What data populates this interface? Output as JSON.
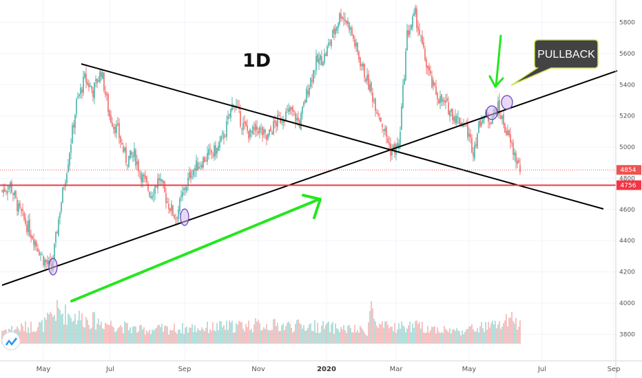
{
  "chart_data": {
    "type": "candlestick",
    "timeframe_label": "1D",
    "y_ticks": [
      "3800",
      "4000",
      "4200",
      "4400",
      "4600",
      "4800",
      "5000",
      "5200",
      "5400",
      "5600",
      "5800"
    ],
    "ylim": [
      3630,
      5930
    ],
    "x_ticks": [
      "May",
      "Jul",
      "Sep",
      "Nov",
      "2020",
      "Mar",
      "May",
      "Jul",
      "Sep"
    ],
    "price_tags": [
      {
        "label": "4854",
        "value": 4854,
        "color": "#ef5350"
      },
      {
        "label": "4756",
        "value": 4756,
        "color": "#f23645"
      }
    ],
    "support_level": 4756,
    "last_price": 4854,
    "annotation": "PULLBACK",
    "colors": {
      "up": "#26a69a",
      "down": "#ef5350",
      "support": "#f23645",
      "arrow": "#25e61e",
      "trendline": "#000000",
      "marker_fill": "#d8b8ef",
      "marker_stroke": "#5b3fb5",
      "callout_bg": "#434343"
    },
    "trendlines": [
      {
        "name": "descending-resistance"
      },
      {
        "name": "ascending-support"
      }
    ],
    "price_anchors": [
      [
        0,
        4720
      ],
      [
        6,
        4760
      ],
      [
        12,
        4600
      ],
      [
        18,
        4500
      ],
      [
        24,
        4400
      ],
      [
        30,
        4280
      ],
      [
        36,
        4220
      ],
      [
        42,
        4600
      ],
      [
        48,
        4920
      ],
      [
        54,
        5280
      ],
      [
        60,
        5440
      ],
      [
        66,
        5360
      ],
      [
        72,
        5490
      ],
      [
        78,
        5200
      ],
      [
        84,
        5100
      ],
      [
        90,
        4920
      ],
      [
        96,
        4950
      ],
      [
        102,
        4800
      ],
      [
        108,
        4700
      ],
      [
        114,
        4800
      ],
      [
        120,
        4650
      ],
      [
        126,
        4550
      ],
      [
        132,
        4720
      ],
      [
        138,
        4850
      ],
      [
        144,
        4900
      ],
      [
        150,
        4950
      ],
      [
        156,
        4980
      ],
      [
        162,
        5100
      ],
      [
        168,
        5300
      ],
      [
        174,
        5150
      ],
      [
        180,
        5080
      ],
      [
        186,
        5120
      ],
      [
        192,
        5050
      ],
      [
        198,
        5150
      ],
      [
        204,
        5200
      ],
      [
        210,
        5230
      ],
      [
        216,
        5150
      ],
      [
        222,
        5380
      ],
      [
        228,
        5540
      ],
      [
        234,
        5580
      ],
      [
        240,
        5720
      ],
      [
        246,
        5860
      ],
      [
        252,
        5780
      ],
      [
        258,
        5600
      ],
      [
        264,
        5450
      ],
      [
        270,
        5300
      ],
      [
        276,
        5150
      ],
      [
        282,
        4980
      ],
      [
        288,
        5000
      ],
      [
        294,
        5720
      ],
      [
        300,
        5850
      ],
      [
        306,
        5600
      ],
      [
        312,
        5400
      ],
      [
        318,
        5300
      ],
      [
        324,
        5250
      ],
      [
        330,
        5180
      ],
      [
        336,
        5150
      ],
      [
        342,
        4980
      ],
      [
        348,
        5200
      ],
      [
        354,
        5180
      ],
      [
        360,
        5250
      ],
      [
        366,
        5100
      ],
      [
        372,
        4950
      ],
      [
        376,
        4854
      ]
    ],
    "volume_anchors": [
      [
        0,
        22
      ],
      [
        30,
        30
      ],
      [
        40,
        52
      ],
      [
        60,
        40
      ],
      [
        100,
        22
      ],
      [
        150,
        26
      ],
      [
        180,
        30
      ],
      [
        230,
        28
      ],
      [
        265,
        20
      ],
      [
        268,
        62
      ],
      [
        272,
        26
      ],
      [
        300,
        28
      ],
      [
        330,
        20
      ],
      [
        360,
        30
      ],
      [
        370,
        38
      ],
      [
        376,
        30
      ]
    ]
  }
}
